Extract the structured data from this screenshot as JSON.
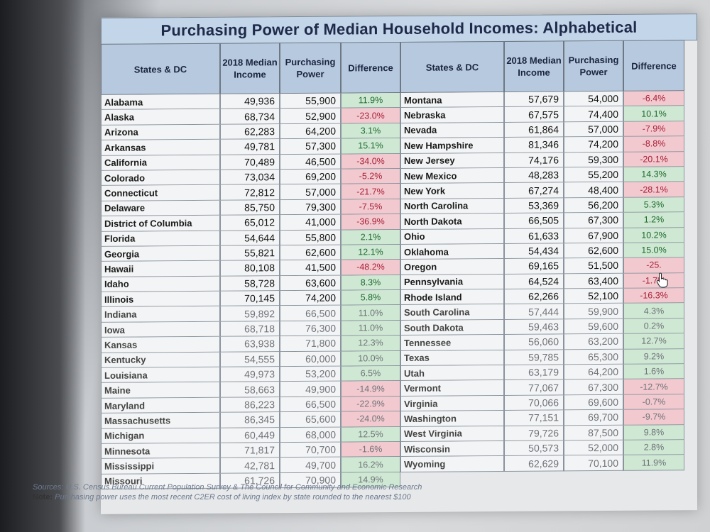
{
  "title": "Purchasing Power of Median Household Incomes: Alphabetical",
  "headers": {
    "state": "States & DC",
    "income": "2018 Median Income",
    "purchasing": "Purchasing Power",
    "difference": "Difference"
  },
  "left_rows": [
    {
      "state": "Alabama",
      "income": "49,936",
      "pp": "55,900",
      "diff": "11.9%",
      "sign": "pos"
    },
    {
      "state": "Alaska",
      "income": "68,734",
      "pp": "52,900",
      "diff": "-23.0%",
      "sign": "neg"
    },
    {
      "state": "Arizona",
      "income": "62,283",
      "pp": "64,200",
      "diff": "3.1%",
      "sign": "pos"
    },
    {
      "state": "Arkansas",
      "income": "49,781",
      "pp": "57,300",
      "diff": "15.1%",
      "sign": "pos"
    },
    {
      "state": "California",
      "income": "70,489",
      "pp": "46,500",
      "diff": "-34.0%",
      "sign": "neg"
    },
    {
      "state": "Colorado",
      "income": "73,034",
      "pp": "69,200",
      "diff": "-5.2%",
      "sign": "neg"
    },
    {
      "state": "Connecticut",
      "income": "72,812",
      "pp": "57,000",
      "diff": "-21.7%",
      "sign": "neg"
    },
    {
      "state": "Delaware",
      "income": "85,750",
      "pp": "79,300",
      "diff": "-7.5%",
      "sign": "neg"
    },
    {
      "state": "District of Columbia",
      "income": "65,012",
      "pp": "41,000",
      "diff": "-36.9%",
      "sign": "neg"
    },
    {
      "state": "Florida",
      "income": "54,644",
      "pp": "55,800",
      "diff": "2.1%",
      "sign": "pos"
    },
    {
      "state": "Georgia",
      "income": "55,821",
      "pp": "62,600",
      "diff": "12.1%",
      "sign": "pos"
    },
    {
      "state": "Hawaii",
      "income": "80,108",
      "pp": "41,500",
      "diff": "-48.2%",
      "sign": "neg"
    },
    {
      "state": "Idaho",
      "income": "58,728",
      "pp": "63,600",
      "diff": "8.3%",
      "sign": "pos"
    },
    {
      "state": "Illinois",
      "income": "70,145",
      "pp": "74,200",
      "diff": "5.8%",
      "sign": "pos"
    },
    {
      "state": "Indiana",
      "income": "59,892",
      "pp": "66,500",
      "diff": "11.0%",
      "sign": "pos"
    },
    {
      "state": "Iowa",
      "income": "68,718",
      "pp": "76,300",
      "diff": "11.0%",
      "sign": "pos"
    },
    {
      "state": "Kansas",
      "income": "63,938",
      "pp": "71,800",
      "diff": "12.3%",
      "sign": "pos"
    },
    {
      "state": "Kentucky",
      "income": "54,555",
      "pp": "60,000",
      "diff": "10.0%",
      "sign": "pos"
    },
    {
      "state": "Louisiana",
      "income": "49,973",
      "pp": "53,200",
      "diff": "6.5%",
      "sign": "pos"
    },
    {
      "state": "Maine",
      "income": "58,663",
      "pp": "49,900",
      "diff": "-14.9%",
      "sign": "neg"
    },
    {
      "state": "Maryland",
      "income": "86,223",
      "pp": "66,500",
      "diff": "-22.9%",
      "sign": "neg"
    },
    {
      "state": "Massachusetts",
      "income": "86,345",
      "pp": "65,600",
      "diff": "-24.0%",
      "sign": "neg"
    },
    {
      "state": "Michigan",
      "income": "60,449",
      "pp": "68,000",
      "diff": "12.5%",
      "sign": "pos"
    },
    {
      "state": "Minnesota",
      "income": "71,817",
      "pp": "70,700",
      "diff": "-1.6%",
      "sign": "neg"
    },
    {
      "state": "Mississippi",
      "income": "42,781",
      "pp": "49,700",
      "diff": "16.2%",
      "sign": "pos"
    },
    {
      "state": "Missouri",
      "income": "61,726",
      "pp": "70,900",
      "diff": "14.9%",
      "sign": "pos"
    }
  ],
  "right_rows": [
    {
      "state": "Montana",
      "income": "57,679",
      "pp": "54,000",
      "diff": "-6.4%",
      "sign": "neg"
    },
    {
      "state": "Nebraska",
      "income": "67,575",
      "pp": "74,400",
      "diff": "10.1%",
      "sign": "pos"
    },
    {
      "state": "Nevada",
      "income": "61,864",
      "pp": "57,000",
      "diff": "-7.9%",
      "sign": "neg"
    },
    {
      "state": "New Hampshire",
      "income": "81,346",
      "pp": "74,200",
      "diff": "-8.8%",
      "sign": "neg"
    },
    {
      "state": "New Jersey",
      "income": "74,176",
      "pp": "59,300",
      "diff": "-20.1%",
      "sign": "neg"
    },
    {
      "state": "New Mexico",
      "income": "48,283",
      "pp": "55,200",
      "diff": "14.3%",
      "sign": "pos"
    },
    {
      "state": "New York",
      "income": "67,274",
      "pp": "48,400",
      "diff": "-28.1%",
      "sign": "neg"
    },
    {
      "state": "North Carolina",
      "income": "53,369",
      "pp": "56,200",
      "diff": "5.3%",
      "sign": "pos"
    },
    {
      "state": "North Dakota",
      "income": "66,505",
      "pp": "67,300",
      "diff": "1.2%",
      "sign": "pos"
    },
    {
      "state": "Ohio",
      "income": "61,633",
      "pp": "67,900",
      "diff": "10.2%",
      "sign": "pos"
    },
    {
      "state": "Oklahoma",
      "income": "54,434",
      "pp": "62,600",
      "diff": "15.0%",
      "sign": "pos"
    },
    {
      "state": "Oregon",
      "income": "69,165",
      "pp": "51,500",
      "diff": "-25.",
      "sign": "neg"
    },
    {
      "state": "Pennsylvania",
      "income": "64,524",
      "pp": "63,400",
      "diff": "-1.7%",
      "sign": "neg"
    },
    {
      "state": "Rhode Island",
      "income": "62,266",
      "pp": "52,100",
      "diff": "-16.3%",
      "sign": "neg"
    },
    {
      "state": "South Carolina",
      "income": "57,444",
      "pp": "59,900",
      "diff": "4.3%",
      "sign": "pos"
    },
    {
      "state": "South Dakota",
      "income": "59,463",
      "pp": "59,600",
      "diff": "0.2%",
      "sign": "pos"
    },
    {
      "state": "Tennessee",
      "income": "56,060",
      "pp": "63,200",
      "diff": "12.7%",
      "sign": "pos"
    },
    {
      "state": "Texas",
      "income": "59,785",
      "pp": "65,300",
      "diff": "9.2%",
      "sign": "pos"
    },
    {
      "state": "Utah",
      "income": "63,179",
      "pp": "64,200",
      "diff": "1.6%",
      "sign": "pos"
    },
    {
      "state": "Vermont",
      "income": "77,067",
      "pp": "67,300",
      "diff": "-12.7%",
      "sign": "neg"
    },
    {
      "state": "Virginia",
      "income": "70,066",
      "pp": "69,600",
      "diff": "-0.7%",
      "sign": "neg"
    },
    {
      "state": "Washington",
      "income": "77,151",
      "pp": "69,700",
      "diff": "-9.7%",
      "sign": "neg"
    },
    {
      "state": "West Virginia",
      "income": "79,726",
      "pp": "87,500",
      "diff": "9.8%",
      "sign": "pos"
    },
    {
      "state": "Wisconsin",
      "income": "50,573",
      "pp": "52,000",
      "diff": "2.8%",
      "sign": "pos"
    },
    {
      "state": "Wyoming",
      "income": "62,629",
      "pp": "70,100",
      "diff": "11.9%",
      "sign": "pos"
    }
  ],
  "footer": {
    "sources": "Sources: U.S. Census Bureau Current Population Survey & The Council for Community and Economic Research",
    "note_label": "Note:",
    "note": "Purchasing power uses the most recent C2ER cost of living index by state rounded to the nearest $100"
  },
  "colors": {
    "positive": "#cfe8d3",
    "negative": "#f2c9cf",
    "header": "#b7c9de",
    "title": "#c3d5e8"
  },
  "cursor_icon": "hand-pointer-icon"
}
